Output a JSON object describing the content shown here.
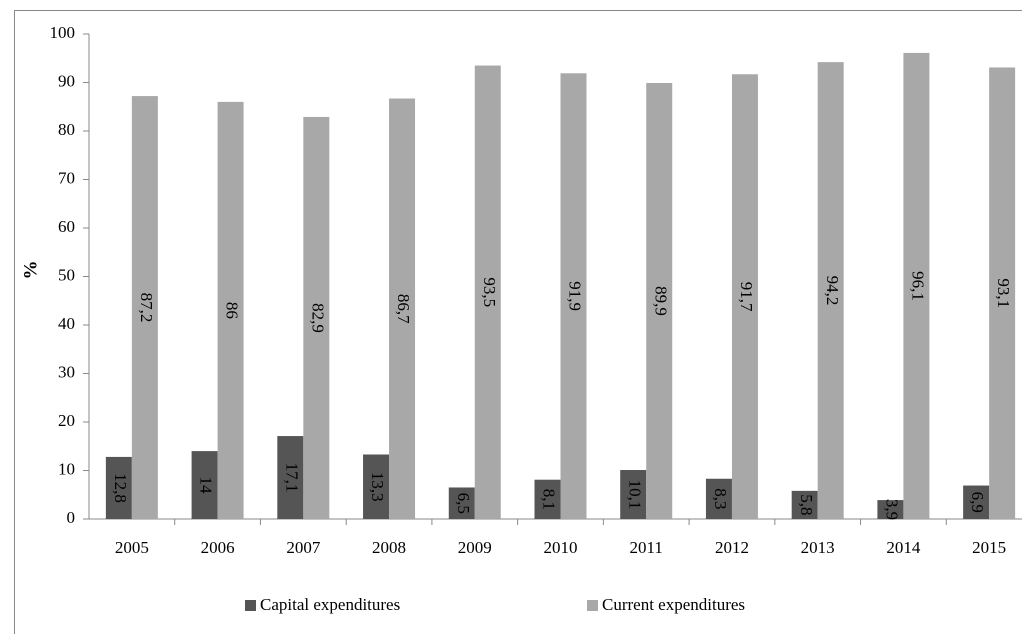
{
  "chart_data": {
    "type": "bar",
    "y_label": "%",
    "categories": [
      "2005",
      "2006",
      "2007",
      "2008",
      "2009",
      "2010",
      "2011",
      "2012",
      "2013",
      "2014",
      "2015"
    ],
    "series": [
      {
        "name": "Capital expenditures",
        "color": "#555555",
        "values": [
          12.8,
          14,
          17.1,
          13.3,
          6.5,
          8.1,
          10.1,
          8.3,
          5.8,
          3.9,
          6.9
        ],
        "value_labels": [
          "12,8",
          "14",
          "17,1",
          "13,3",
          "6,5",
          "8,1",
          "10,1",
          "8,3",
          "5,8",
          "3,9",
          "6,9"
        ]
      },
      {
        "name": "Current expenditures",
        "color": "#a8a8a8",
        "values": [
          87.2,
          86,
          82.9,
          86.7,
          93.5,
          91.9,
          89.9,
          91.7,
          94.2,
          96.1,
          93.1
        ],
        "value_labels": [
          "87,2",
          "86",
          "82,9",
          "86,7",
          "93,5",
          "91,9",
          "89,9",
          "91,7",
          "94,2",
          "96,1",
          "93,1"
        ]
      }
    ],
    "ylim": [
      0,
      100
    ],
    "yticks": [
      0,
      10,
      20,
      30,
      40,
      50,
      60,
      70,
      80,
      90,
      100
    ],
    "grid": false,
    "legend": "bottom"
  }
}
